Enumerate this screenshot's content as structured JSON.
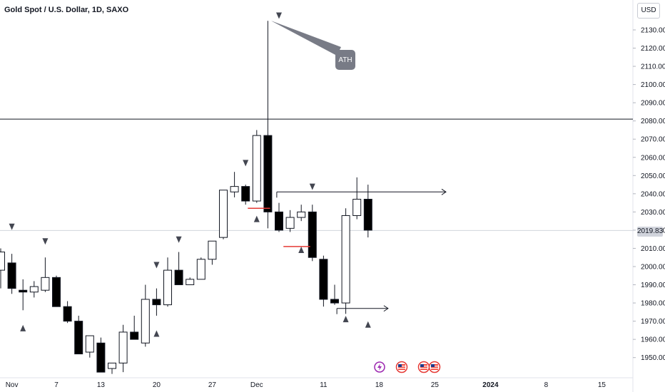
{
  "header": {
    "title": "Gold Spot / U.S. Dollar, 1D, SAXO",
    "currency": "USD",
    "last_price": "2019.83"
  },
  "chart_data": {
    "type": "candlestick",
    "ylim": [
      1940,
      2145
    ],
    "yticks": [
      {
        "value": 1950,
        "label": "1950.00"
      },
      {
        "value": 1960,
        "label": "1960.00"
      },
      {
        "value": 1970,
        "label": "1970.00"
      },
      {
        "value": 1980,
        "label": "1980.00"
      },
      {
        "value": 1990,
        "label": "1990.00"
      },
      {
        "value": 2000,
        "label": "2000.00"
      },
      {
        "value": 2010,
        "label": "2010.00"
      },
      {
        "value": 2020,
        "label": "2020.00"
      },
      {
        "value": 2030,
        "label": "2030.00"
      },
      {
        "value": 2040,
        "label": "2040.00"
      },
      {
        "value": 2050,
        "label": "2050.00"
      },
      {
        "value": 2060,
        "label": "2060.00"
      },
      {
        "value": 2070,
        "label": "2070.00"
      },
      {
        "value": 2080,
        "label": "2080.00"
      },
      {
        "value": 2090,
        "label": "2090.00"
      },
      {
        "value": 2100,
        "label": "2100.00"
      },
      {
        "value": 2110,
        "label": "2110.00"
      },
      {
        "value": 2120,
        "label": "2120.00"
      },
      {
        "value": 2130,
        "label": "2130.00"
      }
    ],
    "xticks": [
      {
        "index": 1,
        "label": "Nov",
        "bold": false
      },
      {
        "index": 5,
        "label": "7",
        "bold": false
      },
      {
        "index": 9,
        "label": "13",
        "bold": false
      },
      {
        "index": 14,
        "label": "20",
        "bold": false
      },
      {
        "index": 19,
        "label": "27",
        "bold": false
      },
      {
        "index": 23,
        "label": "Dec",
        "bold": false
      },
      {
        "index": 29,
        "label": "11",
        "bold": false
      },
      {
        "index": 34,
        "label": "18",
        "bold": false
      },
      {
        "index": 39,
        "label": "25",
        "bold": false
      },
      {
        "index": 44,
        "label": "2024",
        "bold": true
      },
      {
        "index": 49,
        "label": "8",
        "bold": false
      },
      {
        "index": 54,
        "label": "15",
        "bold": false
      }
    ],
    "candles": [
      {
        "i": 0,
        "o": 1998,
        "h": 2010,
        "l": 1988,
        "c": 2008
      },
      {
        "i": 1,
        "o": 2002,
        "h": 2007,
        "l": 1985,
        "c": 1988
      },
      {
        "i": 2,
        "o": 1987,
        "h": 1993,
        "l": 1976,
        "c": 1986
      },
      {
        "i": 3,
        "o": 1986,
        "h": 1992,
        "l": 1983,
        "c": 1989
      },
      {
        "i": 4,
        "o": 1987,
        "h": 2005,
        "l": 1986,
        "c": 1994
      },
      {
        "i": 5,
        "o": 1994,
        "h": 1995,
        "l": 1978,
        "c": 1978
      },
      {
        "i": 6,
        "o": 1978,
        "h": 1981,
        "l": 1969,
        "c": 1970
      },
      {
        "i": 7,
        "o": 1970,
        "h": 1973,
        "l": 1952,
        "c": 1952
      },
      {
        "i": 8,
        "o": 1953,
        "h": 1962,
        "l": 1950,
        "c": 1962
      },
      {
        "i": 9,
        "o": 1958,
        "h": 1961,
        "l": 1942,
        "c": 1942
      },
      {
        "i": 10,
        "o": 1944,
        "h": 1947,
        "l": 1941,
        "c": 1947
      },
      {
        "i": 11,
        "o": 1947,
        "h": 1968,
        "l": 1942,
        "c": 1964
      },
      {
        "i": 12,
        "o": 1964,
        "h": 1973,
        "l": 1961,
        "c": 1960
      },
      {
        "i": 13,
        "o": 1958,
        "h": 1990,
        "l": 1956,
        "c": 1982
      },
      {
        "i": 14,
        "o": 1982,
        "h": 1988,
        "l": 1973,
        "c": 1979
      },
      {
        "i": 15,
        "o": 1979,
        "h": 2005,
        "l": 1978,
        "c": 1998
      },
      {
        "i": 16,
        "o": 1998,
        "h": 2008,
        "l": 1990,
        "c": 1990
      },
      {
        "i": 17,
        "o": 1990,
        "h": 1994,
        "l": 1990,
        "c": 1993
      },
      {
        "i": 18,
        "o": 1993,
        "h": 2005,
        "l": 1993,
        "c": 2004
      },
      {
        "i": 19,
        "o": 2004,
        "h": 2014,
        "l": 2001,
        "c": 2014
      },
      {
        "i": 20,
        "o": 2016,
        "h": 2042,
        "l": 2015,
        "c": 2042
      },
      {
        "i": 21,
        "o": 2041,
        "h": 2052,
        "l": 2038,
        "c": 2044
      },
      {
        "i": 22,
        "o": 2044,
        "h": 2045,
        "l": 2034,
        "c": 2036
      },
      {
        "i": 23,
        "o": 2036,
        "h": 2075,
        "l": 2035,
        "c": 2072
      },
      {
        "i": 24,
        "o": 2072,
        "h": 2135,
        "l": 2021,
        "c": 2030
      },
      {
        "i": 25,
        "o": 2030,
        "h": 2035,
        "l": 2019,
        "c": 2020
      },
      {
        "i": 26,
        "o": 2021,
        "h": 2031,
        "l": 2019,
        "c": 2027
      },
      {
        "i": 27,
        "o": 2027,
        "h": 2034,
        "l": 2025,
        "c": 2030
      },
      {
        "i": 28,
        "o": 2030,
        "h": 2034,
        "l": 2003,
        "c": 2005
      },
      {
        "i": 29,
        "o": 2004,
        "h": 2006,
        "l": 1978,
        "c": 1982
      },
      {
        "i": 30,
        "o": 1982,
        "h": 1990,
        "l": 1979,
        "c": 1980
      },
      {
        "i": 31,
        "o": 1980,
        "h": 2032,
        "l": 1974,
        "c": 2028
      },
      {
        "i": 32,
        "o": 2028,
        "h": 2049,
        "l": 2026,
        "c": 2037
      },
      {
        "i": 33,
        "o": 2037,
        "h": 2045,
        "l": 2016,
        "c": 2020
      }
    ],
    "horizontal_lines": [
      {
        "value": 2081,
        "color": "#131722"
      },
      {
        "value": 2019.83,
        "color": "#d1d4dc"
      }
    ],
    "ray_lines": [
      {
        "from_index": 24.8,
        "to_index": 40,
        "value": 2041,
        "color": "#131722",
        "arrow": true
      },
      {
        "from_index": 30.2,
        "to_index": 34.8,
        "value": 1977,
        "color": "#131722",
        "arrow": true
      }
    ],
    "red_lines": [
      {
        "from_index": 22.2,
        "to_index": 24.2,
        "value": 2032
      },
      {
        "from_index": 25.4,
        "to_index": 27.8,
        "value": 2011
      }
    ],
    "markers": [
      {
        "index": 1,
        "value": 2022,
        "dir": "down"
      },
      {
        "index": 2,
        "value": 1966,
        "dir": "up"
      },
      {
        "index": 4,
        "value": 2014,
        "dir": "down"
      },
      {
        "index": 14,
        "value": 1963,
        "dir": "up"
      },
      {
        "index": 14,
        "value": 2001,
        "dir": "down"
      },
      {
        "index": 16,
        "value": 2015,
        "dir": "down"
      },
      {
        "index": 22,
        "value": 2057,
        "dir": "down"
      },
      {
        "index": 23,
        "value": 2026,
        "dir": "up"
      },
      {
        "index": 25,
        "value": 2138,
        "dir": "down"
      },
      {
        "index": 27,
        "value": 2009,
        "dir": "up"
      },
      {
        "index": 28,
        "value": 2044,
        "dir": "down"
      },
      {
        "index": 31,
        "value": 1971,
        "dir": "up"
      },
      {
        "index": 33,
        "value": 1968,
        "dir": "up"
      }
    ],
    "annotation": {
      "text": "ATH",
      "anchor_index": 24.3,
      "anchor_value": 2135
    },
    "event_icons": [
      "lightning-icon",
      "us-flag-icon",
      "us-flag-icon",
      "us-flag-icon"
    ]
  }
}
